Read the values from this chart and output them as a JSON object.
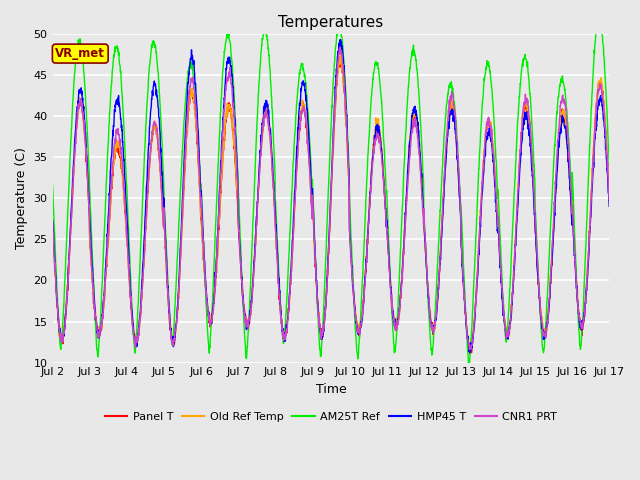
{
  "title": "Temperatures",
  "xlabel": "Time",
  "ylabel": "Temperature (C)",
  "ylim": [
    10,
    50
  ],
  "bg_color": "#e8e8e8",
  "x_tick_labels": [
    "Jul 2",
    "Jul 3",
    "Jul 4",
    "Jul 5",
    "Jul 6",
    "Jul 7",
    "Jul 8",
    "Jul 9",
    "Jul 10",
    "Jul 11",
    "Jul 12",
    "Jul 13",
    "Jul 14",
    "Jul 15",
    "Jul 16",
    "Jul 17"
  ],
  "annotation_text": "VR_met",
  "annotation_dark_red": "#8B0000",
  "annotation_bg": "#FFFF00",
  "series_order": [
    "Panel T",
    "Old Ref Temp",
    "AM25T Ref",
    "HMP45 T",
    "CNR1 PRT"
  ],
  "series_colors": {
    "Panel T": "#FF0000",
    "Old Ref Temp": "#FFA500",
    "AM25T Ref": "#00EE00",
    "HMP45 T": "#0000FF",
    "CNR1 PRT": "#CC44CC"
  },
  "lw": 1.0,
  "n_days": 15,
  "pts_per_day": 144,
  "title_fontsize": 11,
  "label_fontsize": 9,
  "tick_fontsize": 8,
  "legend_fontsize": 8
}
